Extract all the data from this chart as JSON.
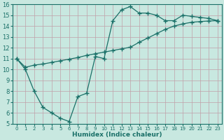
{
  "line1_x": [
    0,
    1,
    2,
    3,
    4,
    5,
    6,
    7,
    8,
    9,
    10,
    11,
    12,
    13,
    14,
    15,
    16,
    17,
    18,
    19,
    20,
    21,
    22,
    23
  ],
  "line1_y": [
    11.0,
    10.0,
    8.0,
    6.5,
    6.0,
    5.5,
    5.2,
    7.5,
    7.8,
    11.2,
    11.0,
    14.5,
    15.5,
    15.8,
    15.2,
    15.2,
    15.0,
    14.5,
    14.5,
    15.0,
    14.9,
    14.8,
    14.7,
    14.5
  ],
  "line2_x": [
    0,
    1,
    2,
    3,
    4,
    5,
    6,
    7,
    8,
    9,
    10,
    11,
    12,
    13,
    14,
    15,
    16,
    17,
    18,
    19,
    20,
    21,
    22,
    23
  ],
  "line2_y": [
    11.0,
    10.2,
    10.4,
    10.5,
    10.65,
    10.8,
    10.95,
    11.1,
    11.3,
    11.45,
    11.6,
    11.75,
    11.9,
    12.05,
    12.5,
    12.9,
    13.3,
    13.7,
    14.0,
    14.2,
    14.35,
    14.42,
    14.47,
    14.5
  ],
  "line_color": "#1a7068",
  "bg_color": "#c8e8e0",
  "grid_color": "#b0d8d0",
  "xlabel": "Humidex (Indice chaleur)",
  "xlim": [
    -0.5,
    23.5
  ],
  "ylim": [
    5,
    16
  ],
  "xticks": [
    0,
    1,
    2,
    3,
    4,
    5,
    6,
    7,
    8,
    9,
    10,
    11,
    12,
    13,
    14,
    15,
    16,
    17,
    18,
    19,
    20,
    21,
    22,
    23
  ],
  "yticks": [
    5,
    6,
    7,
    8,
    9,
    10,
    11,
    12,
    13,
    14,
    15,
    16
  ],
  "marker": "+",
  "markersize": 4,
  "linewidth": 0.9
}
